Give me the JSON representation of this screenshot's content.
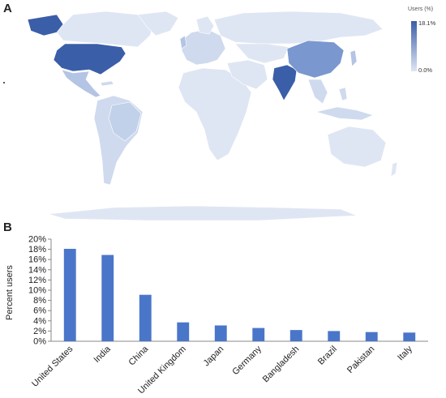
{
  "panels": {
    "a": "A",
    "b": "B"
  },
  "map": {
    "legend_title": "Users (%)",
    "legend_max": "18.1%",
    "legend_min": "0.0%",
    "colors": {
      "ocean": "#ffffff",
      "base": "#dfe6f3",
      "light": "#cfdaee",
      "mid": "#b3c4e4",
      "china": "#7a97cf",
      "dark": "#3a5ea8"
    }
  },
  "chart_data": {
    "type": "bar",
    "title": "",
    "xlabel": "",
    "ylabel": "Percent users",
    "categories": [
      "United States",
      "India",
      "China",
      "United Kingdom",
      "Japan",
      "Germany",
      "Bangladesh",
      "Brazil",
      "Pakistan",
      "Italy"
    ],
    "values": [
      18.1,
      16.9,
      9.1,
      3.7,
      3.1,
      2.6,
      2.2,
      2.0,
      1.8,
      1.7
    ],
    "ylim": [
      0,
      20
    ],
    "yticks": [
      "0%",
      "2%",
      "4%",
      "6%",
      "8%",
      "10%",
      "12%",
      "14%",
      "16%",
      "18%",
      "20%"
    ],
    "bar_color": "#4a76c9",
    "grid": false
  }
}
